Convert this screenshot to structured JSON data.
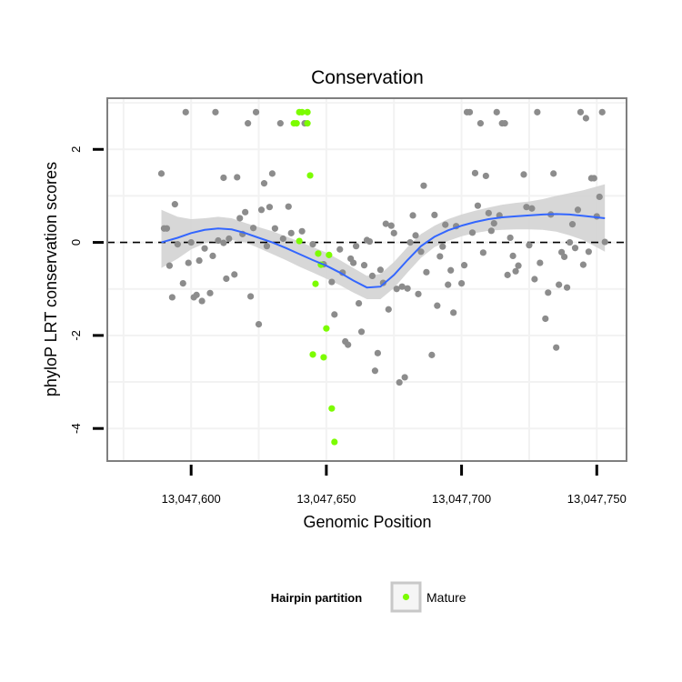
{
  "colors": {
    "panel_border": "#7f7f7f",
    "grid": "#f2f2f2",
    "point_other": "#8c8c8c",
    "point_mature": "#7cfc00",
    "smooth_line": "#3366ff",
    "ci_band": "#d3d3d3",
    "zero_line": "#000000"
  },
  "chart_data": {
    "type": "scatter",
    "title": "Conservation",
    "xlabel": "Genomic Position",
    "ylabel": "phyloP LRT conservation scores",
    "xlim": [
      13047569,
      13047761
    ],
    "ylim": [
      -4.7,
      3.1
    ],
    "x_ticks": [
      13047600,
      13047650,
      13047700,
      13047750
    ],
    "x_tick_labels": [
      "13,047,600",
      "13,047,650",
      "13,047,700",
      "13,047,750"
    ],
    "y_ticks": [
      -4,
      -2,
      0,
      2
    ],
    "y_tick_labels": [
      "-4",
      "-2",
      "0",
      "2"
    ],
    "grid": true,
    "reference_line": {
      "y": 0,
      "style": "dashed"
    },
    "legend": {
      "title": "Hairpin partition",
      "entries": [
        {
          "label": "Mature",
          "color": "#7cfc00"
        }
      ],
      "position": "bottom"
    },
    "series": [
      {
        "group": "other",
        "points": [
          [
            13047589,
            1.48
          ],
          [
            13047590,
            0.3
          ],
          [
            13047591,
            0.3
          ],
          [
            13047592,
            -0.5
          ],
          [
            13047593,
            -1.18
          ],
          [
            13047594,
            0.82
          ],
          [
            13047595,
            -0.04
          ],
          [
            13047597,
            -0.88
          ],
          [
            13047598,
            2.8
          ],
          [
            13047599,
            -0.44
          ],
          [
            13047600,
            0.0
          ],
          [
            13047601,
            -1.18
          ],
          [
            13047602,
            -1.13
          ],
          [
            13047603,
            -0.39
          ],
          [
            13047604,
            -1.26
          ],
          [
            13047605,
            -0.13
          ],
          [
            13047607,
            -1.09
          ],
          [
            13047608,
            -0.29
          ],
          [
            13047609,
            2.8
          ],
          [
            13047610,
            0.04
          ],
          [
            13047612,
            -0.01
          ],
          [
            13047612,
            1.39
          ],
          [
            13047613,
            -0.78
          ],
          [
            13047614,
            0.08
          ],
          [
            13047616,
            -0.69
          ],
          [
            13047617,
            1.4
          ],
          [
            13047618,
            0.52
          ],
          [
            13047619,
            0.18
          ],
          [
            13047620,
            0.65
          ],
          [
            13047621,
            2.56
          ],
          [
            13047622,
            -1.16
          ],
          [
            13047623,
            0.31
          ],
          [
            13047624,
            2.8
          ],
          [
            13047625,
            -1.76
          ],
          [
            13047626,
            0.7
          ],
          [
            13047627,
            1.27
          ],
          [
            13047628,
            -0.08
          ],
          [
            13047629,
            0.76
          ],
          [
            13047630,
            1.48
          ],
          [
            13047631,
            0.3
          ],
          [
            13047633,
            2.56
          ],
          [
            13047634,
            0.08
          ],
          [
            13047636,
            0.77
          ],
          [
            13047637,
            0.2
          ],
          [
            13047641,
            0.24
          ],
          [
            13047642,
            2.56
          ],
          [
            13047645,
            -0.04
          ],
          [
            13047649,
            -0.47
          ],
          [
            13047652,
            -0.85
          ],
          [
            13047653,
            -1.55
          ],
          [
            13047655,
            -0.15
          ],
          [
            13047656,
            -0.65
          ],
          [
            13047657,
            -2.13
          ],
          [
            13047658,
            -2.2
          ],
          [
            13047659,
            -0.35
          ],
          [
            13047660,
            -0.44
          ],
          [
            13047661,
            -0.08
          ],
          [
            13047662,
            -1.31
          ],
          [
            13047663,
            -1.92
          ],
          [
            13047664,
            -0.49
          ],
          [
            13047665,
            0.05
          ],
          [
            13047666,
            0.02
          ],
          [
            13047667,
            -0.72
          ],
          [
            13047668,
            -2.76
          ],
          [
            13047669,
            -2.38
          ],
          [
            13047670,
            -0.59
          ],
          [
            13047671,
            -0.87
          ],
          [
            13047672,
            0.4
          ],
          [
            13047673,
            -1.44
          ],
          [
            13047674,
            0.36
          ],
          [
            13047675,
            0.2
          ],
          [
            13047676,
            -1.0
          ],
          [
            13047677,
            -3.01
          ],
          [
            13047678,
            -0.95
          ],
          [
            13047679,
            -2.9
          ],
          [
            13047680,
            -0.99
          ],
          [
            13047681,
            0.0
          ],
          [
            13047682,
            0.58
          ],
          [
            13047683,
            0.15
          ],
          [
            13047684,
            -1.11
          ],
          [
            13047685,
            -0.2
          ],
          [
            13047686,
            1.22
          ],
          [
            13047687,
            -0.64
          ],
          [
            13047689,
            -2.42
          ],
          [
            13047690,
            0.59
          ],
          [
            13047691,
            -1.36
          ],
          [
            13047692,
            -0.3
          ],
          [
            13047693,
            -0.09
          ],
          [
            13047694,
            0.38
          ],
          [
            13047695,
            -0.91
          ],
          [
            13047696,
            -0.6
          ],
          [
            13047697,
            -1.51
          ],
          [
            13047698,
            0.35
          ],
          [
            13047700,
            -0.88
          ],
          [
            13047701,
            -0.49
          ],
          [
            13047702,
            2.8
          ],
          [
            13047703,
            2.8
          ],
          [
            13047704,
            0.21
          ],
          [
            13047705,
            1.49
          ],
          [
            13047706,
            0.79
          ],
          [
            13047707,
            2.56
          ],
          [
            13047708,
            -0.22
          ],
          [
            13047709,
            1.43
          ],
          [
            13047710,
            0.63
          ],
          [
            13047711,
            0.25
          ],
          [
            13047712,
            0.41
          ],
          [
            13047713,
            2.8
          ],
          [
            13047714,
            0.58
          ],
          [
            13047715,
            2.56
          ],
          [
            13047716,
            2.56
          ],
          [
            13047717,
            -0.7
          ],
          [
            13047718,
            0.1
          ],
          [
            13047719,
            -0.29
          ],
          [
            13047720,
            -0.62
          ],
          [
            13047721,
            -0.5
          ],
          [
            13047723,
            1.46
          ],
          [
            13047724,
            0.76
          ],
          [
            13047725,
            -0.06
          ],
          [
            13047726,
            0.73
          ],
          [
            13047727,
            -0.79
          ],
          [
            13047728,
            2.8
          ],
          [
            13047729,
            -0.44
          ],
          [
            13047731,
            -1.64
          ],
          [
            13047732,
            -1.08
          ],
          [
            13047733,
            0.6
          ],
          [
            13047734,
            1.48
          ],
          [
            13047735,
            -2.26
          ],
          [
            13047736,
            -0.91
          ],
          [
            13047737,
            -0.21
          ],
          [
            13047738,
            -0.31
          ],
          [
            13047739,
            -0.97
          ],
          [
            13047740,
            0.0
          ],
          [
            13047741,
            0.39
          ],
          [
            13047742,
            -0.12
          ],
          [
            13047743,
            0.7
          ],
          [
            13047744,
            2.8
          ],
          [
            13047745,
            -0.48
          ],
          [
            13047746,
            2.67
          ],
          [
            13047747,
            -0.2
          ],
          [
            13047748,
            1.38
          ],
          [
            13047749,
            1.38
          ],
          [
            13047750,
            0.56
          ],
          [
            13047751,
            0.98
          ],
          [
            13047752,
            2.8
          ],
          [
            13047753,
            0.01
          ]
        ]
      },
      {
        "group": "Mature",
        "points": [
          [
            13047638,
            2.56
          ],
          [
            13047639,
            2.56
          ],
          [
            13047640,
            2.8
          ],
          [
            13047641,
            2.8
          ],
          [
            13047643,
            2.8
          ],
          [
            13047643,
            2.56
          ],
          [
            13047644,
            1.44
          ],
          [
            13047645,
            -2.41
          ],
          [
            13047646,
            -0.89
          ],
          [
            13047647,
            -0.24
          ],
          [
            13047648,
            -0.48
          ],
          [
            13047649,
            -2.47
          ],
          [
            13047650,
            -1.85
          ],
          [
            13047651,
            -0.27
          ],
          [
            13047652,
            -3.57
          ],
          [
            13047653,
            -4.29
          ],
          [
            13047640,
            0.03
          ]
        ]
      }
    ],
    "smooth": {
      "x": [
        13047589,
        13047595,
        13047600,
        13047605,
        13047610,
        13047615,
        13047620,
        13047625,
        13047630,
        13047635,
        13047640,
        13047645,
        13047650,
        13047655,
        13047660,
        13047665,
        13047670,
        13047675,
        13047680,
        13047685,
        13047690,
        13047695,
        13047700,
        13047705,
        13047710,
        13047715,
        13047720,
        13047725,
        13047730,
        13047735,
        13047740,
        13047745,
        13047753
      ],
      "y": [
        0.0,
        0.1,
        0.2,
        0.27,
        0.3,
        0.28,
        0.2,
        0.1,
        0.0,
        -0.12,
        -0.25,
        -0.38,
        -0.5,
        -0.65,
        -0.82,
        -0.97,
        -0.95,
        -0.7,
        -0.38,
        -0.08,
        0.12,
        0.26,
        0.36,
        0.44,
        0.5,
        0.54,
        0.56,
        0.58,
        0.6,
        0.61,
        0.6,
        0.57,
        0.52
      ],
      "lo": [
        -0.55,
        -0.35,
        -0.15,
        -0.02,
        0.05,
        0.05,
        0.0,
        -0.12,
        -0.25,
        -0.38,
        -0.52,
        -0.65,
        -0.78,
        -0.92,
        -1.08,
        -1.22,
        -1.22,
        -0.98,
        -0.65,
        -0.33,
        -0.1,
        0.03,
        0.13,
        0.2,
        0.25,
        0.27,
        0.28,
        0.28,
        0.27,
        0.23,
        0.15,
        0.05,
        -0.2
      ],
      "hi": [
        0.7,
        0.55,
        0.5,
        0.52,
        0.55,
        0.52,
        0.42,
        0.33,
        0.24,
        0.13,
        0.02,
        -0.1,
        -0.22,
        -0.38,
        -0.55,
        -0.72,
        -0.68,
        -0.42,
        -0.1,
        0.18,
        0.36,
        0.5,
        0.6,
        0.68,
        0.75,
        0.81,
        0.85,
        0.88,
        0.93,
        1.0,
        1.06,
        1.12,
        1.25
      ]
    }
  }
}
